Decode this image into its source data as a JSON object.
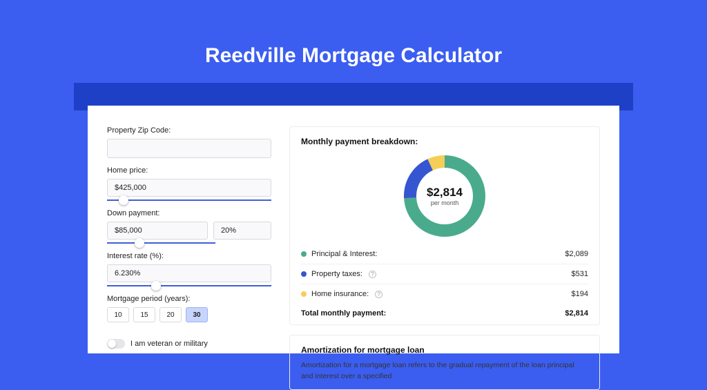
{
  "page": {
    "title": "Reedville Mortgage Calculator",
    "bg_color": "#3b5ef0",
    "shadow_color": "#1e40c7"
  },
  "form": {
    "zip": {
      "label": "Property Zip Code:",
      "value": ""
    },
    "home_price": {
      "label": "Home price:",
      "value": "$425,000",
      "slider_pct": 10
    },
    "down_payment": {
      "label": "Down payment:",
      "value": "$85,000",
      "pct": "20%",
      "slider_pct": 20
    },
    "interest": {
      "label": "Interest rate (%):",
      "value": "6.230%",
      "slider_pct": 30
    },
    "period": {
      "label": "Mortgage period (years):",
      "options": [
        "10",
        "15",
        "20",
        "30"
      ],
      "active": "30"
    },
    "veteran": {
      "label": "I am veteran or military",
      "on": false
    }
  },
  "breakdown": {
    "title": "Monthly payment breakdown:",
    "amount": "$2,814",
    "sub": "per month",
    "donut": {
      "slices": [
        {
          "key": "principal_interest",
          "color": "#4aab8c",
          "pct": 74
        },
        {
          "key": "property_taxes",
          "color": "#3556d0",
          "pct": 19
        },
        {
          "key": "home_insurance",
          "color": "#f4ce56",
          "pct": 7
        }
      ],
      "hole_color": "#ffffff",
      "bg_color": "#ffffff",
      "stroke_width": 18
    },
    "items": [
      {
        "label": "Principal & Interest:",
        "color": "#4aab8c",
        "value": "$2,089",
        "help": false
      },
      {
        "label": "Property taxes:",
        "color": "#3556d0",
        "value": "$531",
        "help": true
      },
      {
        "label": "Home insurance:",
        "color": "#f4ce56",
        "value": "$194",
        "help": true
      }
    ],
    "total": {
      "label": "Total monthly payment:",
      "value": "$2,814"
    }
  },
  "amortization": {
    "title": "Amortization for mortgage loan",
    "text": "Amortization for a mortgage loan refers to the gradual repayment of the loan principal and interest over a specified"
  }
}
